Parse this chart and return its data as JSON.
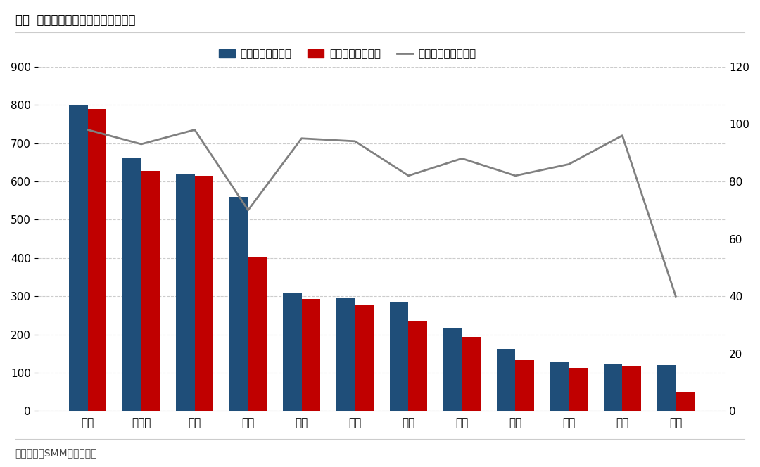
{
  "categories": [
    "山东",
    "内蒙古",
    "新疆",
    "云南",
    "甘肃",
    "青海",
    "广西",
    "河南",
    "贵州",
    "山西",
    "宁夏",
    "四川"
  ],
  "built_capacity": [
    800,
    660,
    620,
    560,
    308,
    295,
    285,
    215,
    162,
    130,
    123,
    120
  ],
  "operating_capacity": [
    790,
    628,
    615,
    403,
    293,
    277,
    235,
    193,
    133,
    112,
    118,
    50
  ],
  "utilization_rate": [
    98,
    93,
    98,
    70,
    95,
    94,
    82,
    88,
    82,
    86,
    96,
    40
  ],
  "bar_color_built": "#1f4e79",
  "bar_color_operating": "#c00000",
  "line_color": "#808080",
  "title": "图：  不同省份电解铝产能利用率情况",
  "legend_built": "建成产能（万吨）",
  "legend_operating": "运行产能（万吨）",
  "legend_line": "产能利用率（右轴）",
  "ylabel_left": "",
  "ylabel_right": "",
  "ylim_left": [
    0,
    900
  ],
  "ylim_right": [
    0,
    120
  ],
  "yticks_left": [
    0,
    100,
    200,
    300,
    400,
    500,
    600,
    700,
    800,
    900
  ],
  "yticks_right": [
    0,
    20,
    40,
    60,
    80,
    100,
    120
  ],
  "source_text": "数据来源：SMM，国信期货",
  "background_color": "#ffffff",
  "grid_color": "#cccccc"
}
